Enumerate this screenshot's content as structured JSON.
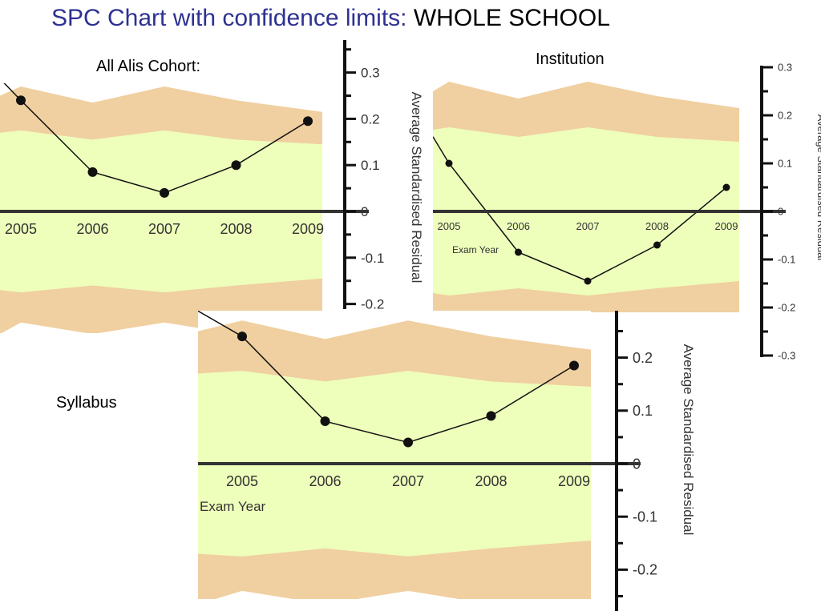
{
  "title": {
    "part1": "SPC Chart with confidence limits:",
    "part2": "WHOLE SCHOOL"
  },
  "labels": {
    "cohort": "All Alis Cohort:",
    "institution": "Institution",
    "syllabus": "Syllabus"
  },
  "colors": {
    "title_blue": "#2e3192",
    "outer_band": "#f0cfa0",
    "inner_band": "#eeffbb",
    "axis": "#333333",
    "line": "#111111"
  },
  "chart_data": [
    {
      "type": "line",
      "name": "all-alis-cohort",
      "x": [
        "2005",
        "2006",
        "2007",
        "2008",
        "2009"
      ],
      "values": [
        0.24,
        0.085,
        0.04,
        0.1,
        0.195
      ],
      "ylabel": "Average Standardised Residual",
      "xlabel": "",
      "yticks": [
        "0.3",
        "0.2",
        "0.1",
        "0",
        "-0.1",
        "-0.2"
      ],
      "ylim": [
        -0.21,
        0.34
      ]
    },
    {
      "type": "line",
      "name": "institution",
      "x": [
        "2005",
        "2006",
        "2007",
        "2008",
        "2009"
      ],
      "values": [
        0.1,
        -0.085,
        -0.145,
        -0.07,
        0.05
      ],
      "ylabel": "Average Standardised Residual",
      "xlabel": "Exam Year",
      "yticks": [
        "0.3",
        "0.2",
        "0.1",
        "0",
        "-0.1",
        "-0.2",
        "-0.3"
      ],
      "ylim": [
        -0.3,
        0.3
      ]
    },
    {
      "type": "line",
      "name": "syllabus",
      "x": [
        "2005",
        "2006",
        "2007",
        "2008",
        "2009"
      ],
      "values": [
        0.24,
        0.08,
        0.04,
        0.09,
        0.185
      ],
      "ylabel": "Average Standardised Residual",
      "xlabel": "Exam Year",
      "yticks": [
        "0.2",
        "0.1",
        "0",
        "-0.1",
        "-0.2"
      ],
      "ylim": [
        -0.27,
        0.3
      ]
    }
  ]
}
